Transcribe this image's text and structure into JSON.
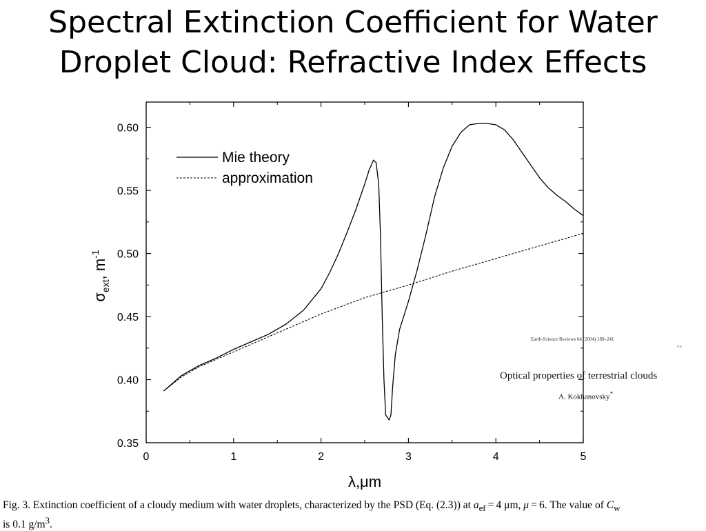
{
  "slide": {
    "title_line1": "Spectral Extinction Coefficient for Water",
    "title_line2": "Droplet Cloud: Refractive Index Effects"
  },
  "reference": {
    "journal": "Earth-Science Reviews 64 (2004) 189–241",
    "www": "ww",
    "paper_title": "Optical properties of terrestrial clouds",
    "author": "A. Kokhanovsky",
    "author_mark": "*"
  },
  "caption": {
    "line1_a": "Fig. 3. Extinction coefficient of a cloudy medium with water droplets, characterized by the PSD (Eq. (2.3)) at ",
    "a": "a",
    "ef": "ef",
    "line1_b": " = 4 μm, ",
    "mu": "μ",
    "line1_c": " = 6. The value of ",
    "C": "C",
    "w": "w",
    "line2_a": "is 0.1 g/m",
    "cube": "3",
    "line2_b": "."
  },
  "chart_data": {
    "type": "line",
    "xlabel": "λ,μm",
    "ylabel_base": "σ",
    "ylabel_sub": "ext",
    "ylabel_rest": ", m",
    "ylabel_sup": "-1",
    "xlim": [
      0,
      5
    ],
    "ylim": [
      0.35,
      0.62
    ],
    "x_ticks": [
      0,
      1,
      2,
      3,
      4,
      5
    ],
    "x_tick_labels": [
      "0",
      "1",
      "2",
      "3",
      "4",
      "5"
    ],
    "y_ticks": [
      0.35,
      0.4,
      0.45,
      0.5,
      0.55,
      0.6
    ],
    "y_tick_labels": [
      "0.35",
      "0.40",
      "0.45",
      "0.50",
      "0.55",
      "0.60"
    ],
    "legend_position": "top-left",
    "grid": false,
    "series": [
      {
        "name": "Mie theory",
        "style": "solid",
        "x": [
          0.2,
          0.4,
          0.6,
          0.8,
          1.0,
          1.2,
          1.4,
          1.6,
          1.8,
          2.0,
          2.1,
          2.2,
          2.3,
          2.4,
          2.5,
          2.55,
          2.6,
          2.63,
          2.66,
          2.68,
          2.7,
          2.72,
          2.74,
          2.76,
          2.78,
          2.8,
          2.82,
          2.85,
          2.9,
          3.0,
          3.1,
          3.2,
          3.3,
          3.4,
          3.5,
          3.6,
          3.7,
          3.8,
          3.9,
          4.0,
          4.1,
          4.2,
          4.3,
          4.4,
          4.5,
          4.6,
          4.7,
          4.8,
          4.9,
          5.0
        ],
        "y": [
          0.391,
          0.403,
          0.411,
          0.417,
          0.424,
          0.43,
          0.436,
          0.444,
          0.455,
          0.472,
          0.485,
          0.5,
          0.517,
          0.535,
          0.555,
          0.566,
          0.574,
          0.572,
          0.555,
          0.515,
          0.45,
          0.4,
          0.372,
          0.37,
          0.368,
          0.372,
          0.395,
          0.42,
          0.44,
          0.462,
          0.487,
          0.515,
          0.545,
          0.568,
          0.585,
          0.596,
          0.602,
          0.603,
          0.603,
          0.602,
          0.598,
          0.59,
          0.58,
          0.57,
          0.56,
          0.552,
          0.546,
          0.541,
          0.535,
          0.53
        ]
      },
      {
        "name": "approximation",
        "style": "dashed",
        "x": [
          0.2,
          0.4,
          0.6,
          0.8,
          1.0,
          1.5,
          2.0,
          2.5,
          3.0,
          3.5,
          4.0,
          4.5,
          5.0
        ],
        "y": [
          0.391,
          0.402,
          0.41,
          0.416,
          0.422,
          0.437,
          0.452,
          0.465,
          0.475,
          0.486,
          0.496,
          0.506,
          0.516
        ]
      }
    ]
  }
}
